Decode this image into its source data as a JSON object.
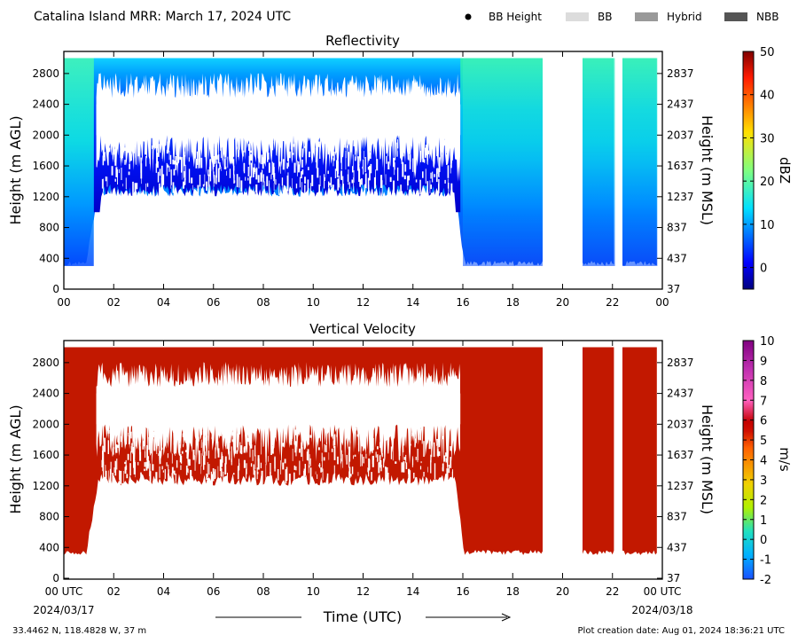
{
  "header": {
    "title": "Catalina Island MRR:  March 17, 2024 UTC",
    "legend": [
      {
        "label": "BB Height",
        "marker": "dot",
        "color": "#000000"
      },
      {
        "label": "BB",
        "marker": "swatch",
        "color": "#dcdcdc"
      },
      {
        "label": "Hybrid",
        "marker": "swatch",
        "color": "#999999"
      },
      {
        "label": "NBB",
        "marker": "swatch",
        "color": "#555555"
      }
    ]
  },
  "footer": {
    "coords": "33.4462 N, 118.4828 W, 37 m",
    "creation": "Plot creation date: Aug 01, 2024 18:36:21 UTC",
    "xlabel": "Time (UTC)",
    "start_date": "2024/03/17",
    "end_date": "2024/03/18"
  },
  "chart_data": [
    {
      "type": "heatmap",
      "title": "Reflectivity",
      "ylabel": "Height (m AGL)",
      "ylabel_right": "Height (m MSL)",
      "xlim": [
        0,
        24
      ],
      "ylim": [
        0,
        3000
      ],
      "x_ticks": [
        "00",
        "02",
        "04",
        "06",
        "08",
        "10",
        "12",
        "14",
        "16",
        "18",
        "20",
        "22",
        "00"
      ],
      "y_ticks": [
        0,
        400,
        800,
        1200,
        1600,
        2000,
        2400,
        2800
      ],
      "y_ticks_right": [
        37,
        437,
        837,
        1237,
        1637,
        2037,
        2437,
        2837
      ],
      "colorbar": {
        "label": "dBZ",
        "min": -5,
        "max": 50,
        "ticks": [
          0,
          10,
          20,
          30,
          40,
          50
        ],
        "scale": "jet"
      },
      "data_periods_utc": [
        [
          0,
          19.2
        ],
        [
          20.8,
          22.1
        ],
        [
          22.4,
          23.8
        ]
      ],
      "gap_band_m": [
        2000,
        2400
      ],
      "gap_band_time_utc": [
        1.3,
        15.9
      ],
      "profiles_dbz": [
        {
          "period": "00-01 UTC",
          "heights_m": [
            300,
            800,
            1600,
            2400,
            3000
          ],
          "values": [
            2,
            6,
            11,
            11,
            13
          ]
        },
        {
          "period": "01-16 UTC",
          "heights_m": [
            1300,
            1800,
            2400,
            2800,
            3000
          ],
          "values": [
            0,
            2,
            3,
            6,
            10
          ]
        },
        {
          "period": "16-19 UTC",
          "heights_m": [
            300,
            1000,
            1800,
            2600,
            3000
          ],
          "values": [
            1,
            5,
            9,
            11,
            13
          ]
        }
      ]
    },
    {
      "type": "heatmap",
      "title": "Vertical Velocity",
      "ylabel": "Height (m AGL)",
      "ylabel_right": "Height (m MSL)",
      "xlim": [
        0,
        24
      ],
      "ylim": [
        0,
        3000
      ],
      "x_ticks": [
        "00 UTC",
        "02",
        "04",
        "06",
        "08",
        "10",
        "12",
        "14",
        "16",
        "18",
        "20",
        "22",
        "00 UTC"
      ],
      "y_ticks": [
        0,
        400,
        800,
        1200,
        1600,
        2000,
        2400,
        2800
      ],
      "y_ticks_right": [
        37,
        437,
        837,
        1237,
        1637,
        2037,
        2437,
        2837
      ],
      "colorbar": {
        "label": "m/s",
        "min": -2,
        "max": 10,
        "ticks": [
          -2,
          -1,
          0,
          1,
          2,
          3,
          4,
          5,
          6,
          7,
          8,
          9,
          10
        ]
      },
      "data_periods_utc": [
        [
          0,
          19.2
        ],
        [
          20.8,
          22.1
        ],
        [
          22.4,
          23.8
        ]
      ],
      "dominant_value_ms": 6
    }
  ]
}
